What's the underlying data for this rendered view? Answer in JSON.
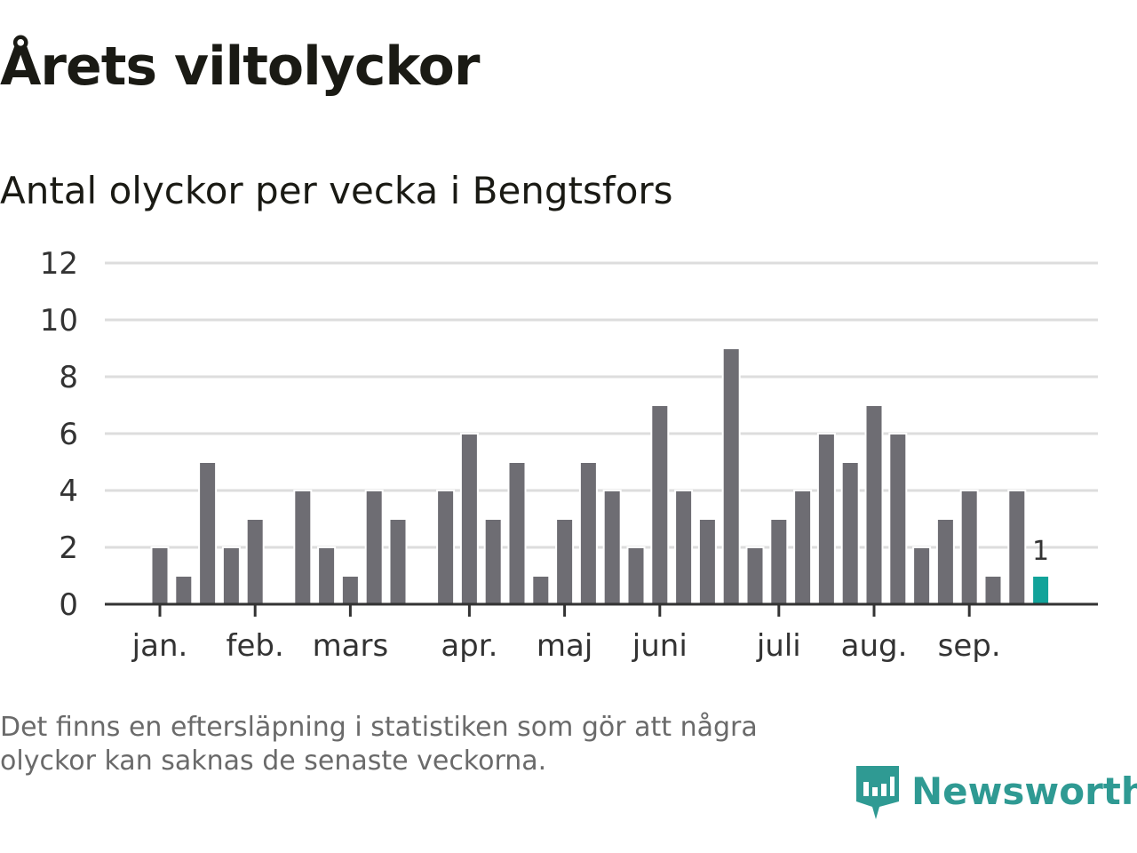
{
  "title": "Årets viltolyckor",
  "subtitle": "Antal olyckor per vecka i Bengtsfors",
  "note": "Det finns en eftersläpning i statistiken som gör att några olyckor kan saknas de senaste veckorna.",
  "logo": "Newsworthy",
  "chart_data": {
    "type": "bar",
    "title": "Antal olyckor per vecka i Bengtsfors",
    "xlabel": "",
    "ylabel": "",
    "ylim": [
      0,
      12
    ],
    "yticks": [
      0,
      2,
      4,
      6,
      8,
      10,
      12
    ],
    "grid": true,
    "values": [
      2,
      1,
      5,
      2,
      3,
      0,
      4,
      2,
      1,
      4,
      3,
      0,
      4,
      6,
      3,
      5,
      1,
      3,
      5,
      4,
      2,
      7,
      4,
      3,
      9,
      2,
      3,
      4,
      6,
      5,
      7,
      6,
      2,
      3,
      4,
      1,
      4,
      1
    ],
    "highlight_last": true,
    "highlight_label": "1",
    "month_ticks": [
      {
        "label": "jan.",
        "week_index": 0
      },
      {
        "label": "feb.",
        "week_index": 4
      },
      {
        "label": "mars",
        "week_index": 8
      },
      {
        "label": "apr.",
        "week_index": 13
      },
      {
        "label": "maj",
        "week_index": 17
      },
      {
        "label": "juni",
        "week_index": 21
      },
      {
        "label": "juli",
        "week_index": 26
      },
      {
        "label": "aug.",
        "week_index": 30
      },
      {
        "label": "sep.",
        "week_index": 34
      }
    ],
    "colors": {
      "bar": "#6e6d73",
      "highlight": "#12a39a",
      "grid": "#dddddd",
      "axis": "#333333"
    }
  }
}
